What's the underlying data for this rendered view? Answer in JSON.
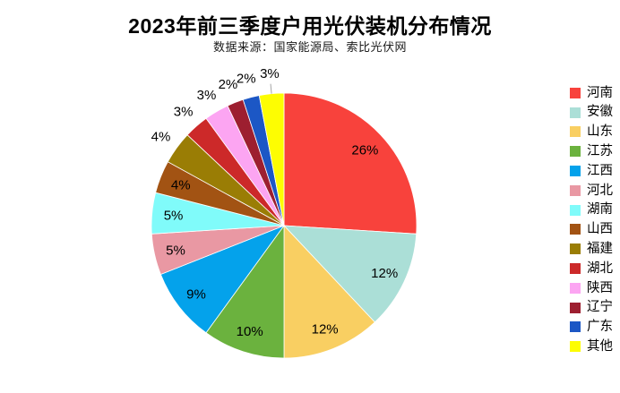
{
  "title": "2023年前三季度户用光伏装机分布情况",
  "subtitle": "数据来源：国家能源局、索比光伏网",
  "chart_data": {
    "type": "pie",
    "title": "2023年前三季度户用光伏装机分布情况",
    "subtitle": "数据来源：国家能源局、索比光伏网",
    "categories": [
      "河南",
      "安徽",
      "山东",
      "江苏",
      "江西",
      "河北",
      "湖南",
      "山西",
      "福建",
      "湖北",
      "陕西",
      "辽宁",
      "广东",
      "其他"
    ],
    "values": [
      26,
      12,
      12,
      10,
      9,
      5,
      5,
      4,
      4,
      3,
      3,
      2,
      2,
      3
    ],
    "value_labels": [
      "26%",
      "12%",
      "12%",
      "10%",
      "9%",
      "5%",
      "5%",
      "4%",
      "4%",
      "3%",
      "3%",
      "2%",
      "2%",
      "3%"
    ],
    "unit": "%",
    "colors": [
      "#F8423C",
      "#ABDFD7",
      "#F9CF62",
      "#6BB23E",
      "#04A2EB",
      "#E998A3",
      "#80FBFA",
      "#A25313",
      "#9A7D05",
      "#CC2929",
      "#FCA5F2",
      "#9D1F30",
      "#1C57C5",
      "#FDFD02"
    ],
    "label_placement": [
      "inside",
      "inside",
      "inside",
      "inside",
      "inside",
      "inside",
      "inside",
      "inside",
      "outside",
      "outside",
      "outside",
      "outside",
      "outside",
      "outside-leader"
    ],
    "start_angle_deg": 0,
    "direction": "clockwise",
    "legend_position": "right",
    "leader_line_color": "#a6a6a6",
    "slice_border_color": "#ffffff"
  }
}
